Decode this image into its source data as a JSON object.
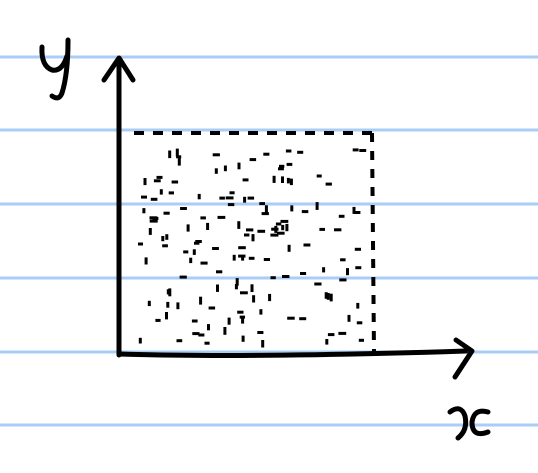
{
  "diagram": {
    "axes": {
      "y_label": "y",
      "x_label": "x"
    },
    "colors": {
      "ruled_lines": "#a9cdf6",
      "ink": "#000000",
      "paper": "#ffffff"
    }
  }
}
